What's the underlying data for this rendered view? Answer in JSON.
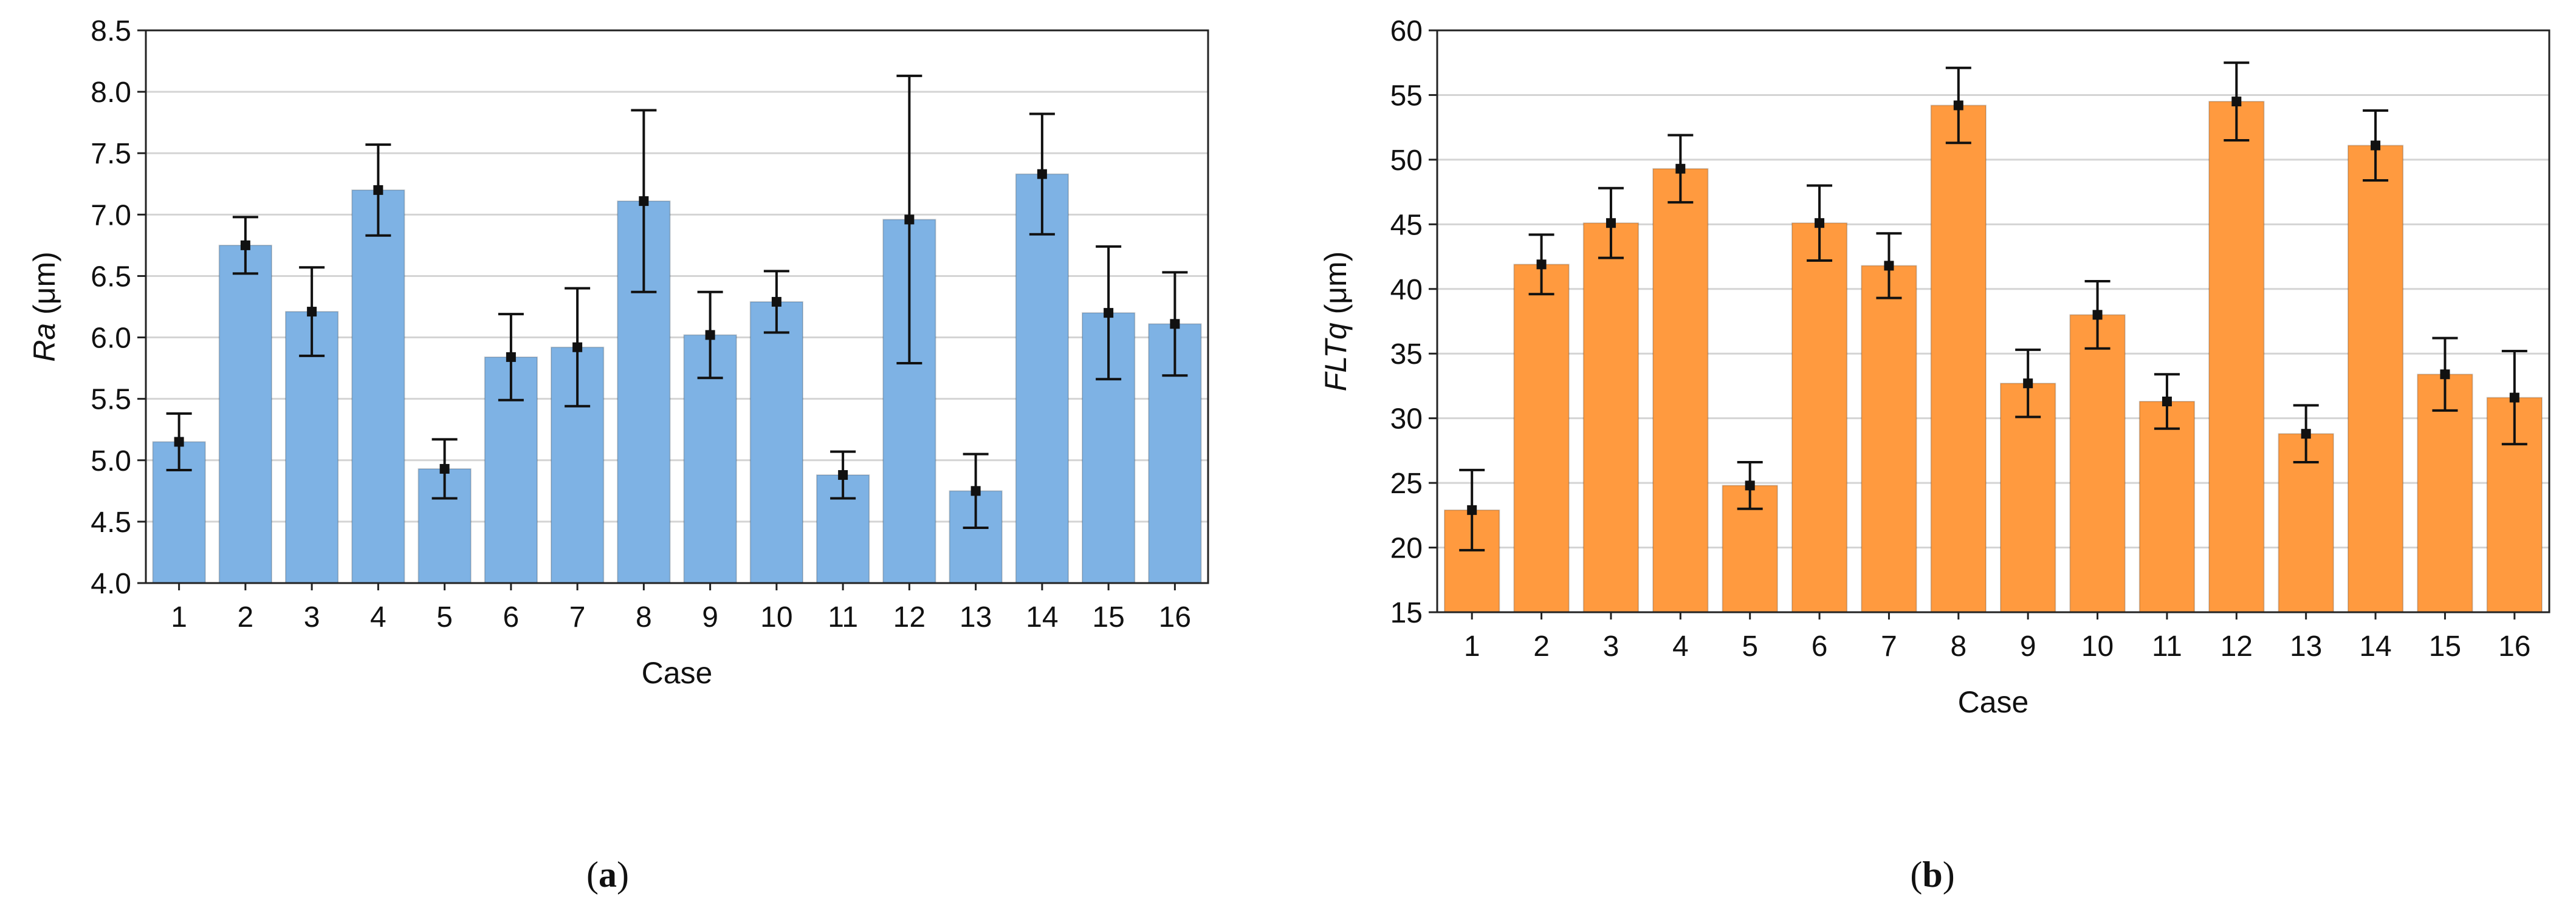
{
  "chart_data": [
    {
      "type": "bar",
      "panel_label": "(a)",
      "panel_letter": "a",
      "title": "",
      "xlabel": "Case",
      "ylabel": "Ra (μm)",
      "ylabel_var": "Ra",
      "ylabel_unit": " (μm)",
      "categories": [
        "1",
        "2",
        "3",
        "4",
        "5",
        "6",
        "7",
        "8",
        "9",
        "10",
        "11",
        "12",
        "13",
        "14",
        "15",
        "16"
      ],
      "values": [
        5.15,
        6.75,
        6.21,
        7.2,
        4.93,
        5.84,
        5.92,
        7.11,
        6.02,
        6.29,
        4.88,
        6.96,
        4.75,
        7.33,
        6.2,
        6.11
      ],
      "error": [
        0.23,
        0.23,
        0.36,
        0.37,
        0.24,
        0.35,
        0.48,
        0.74,
        0.35,
        0.25,
        0.19,
        1.17,
        0.3,
        0.49,
        0.54,
        0.42
      ],
      "ylim": [
        4.0,
        8.5
      ],
      "yticks": [
        "4.0",
        "4.5",
        "5.0",
        "5.5",
        "6.0",
        "6.5",
        "7.0",
        "7.5",
        "8.0",
        "8.5"
      ],
      "grid": true,
      "color": "#7EB2E4"
    },
    {
      "type": "bar",
      "panel_label": "(b)",
      "panel_letter": "b",
      "title": "",
      "xlabel": "Case",
      "ylabel": "FLTq (μm)",
      "ylabel_var": "FLTq",
      "ylabel_unit": " (μm)",
      "categories": [
        "1",
        "2",
        "3",
        "4",
        "5",
        "6",
        "7",
        "8",
        "9",
        "10",
        "11",
        "12",
        "13",
        "14",
        "15",
        "16"
      ],
      "values": [
        22.9,
        41.9,
        45.1,
        49.3,
        24.8,
        45.1,
        41.8,
        54.2,
        32.7,
        38.0,
        31.3,
        54.5,
        28.8,
        51.1,
        33.4,
        31.6
      ],
      "error": [
        3.1,
        2.3,
        2.7,
        2.6,
        1.8,
        2.9,
        2.5,
        2.9,
        2.6,
        2.6,
        2.1,
        3.0,
        2.2,
        2.7,
        2.8,
        3.6
      ],
      "ylim": [
        15,
        60
      ],
      "yticks": [
        "15",
        "20",
        "25",
        "30",
        "35",
        "40",
        "45",
        "50",
        "55",
        "60"
      ],
      "grid": true,
      "color": "#FF9A3F"
    }
  ]
}
